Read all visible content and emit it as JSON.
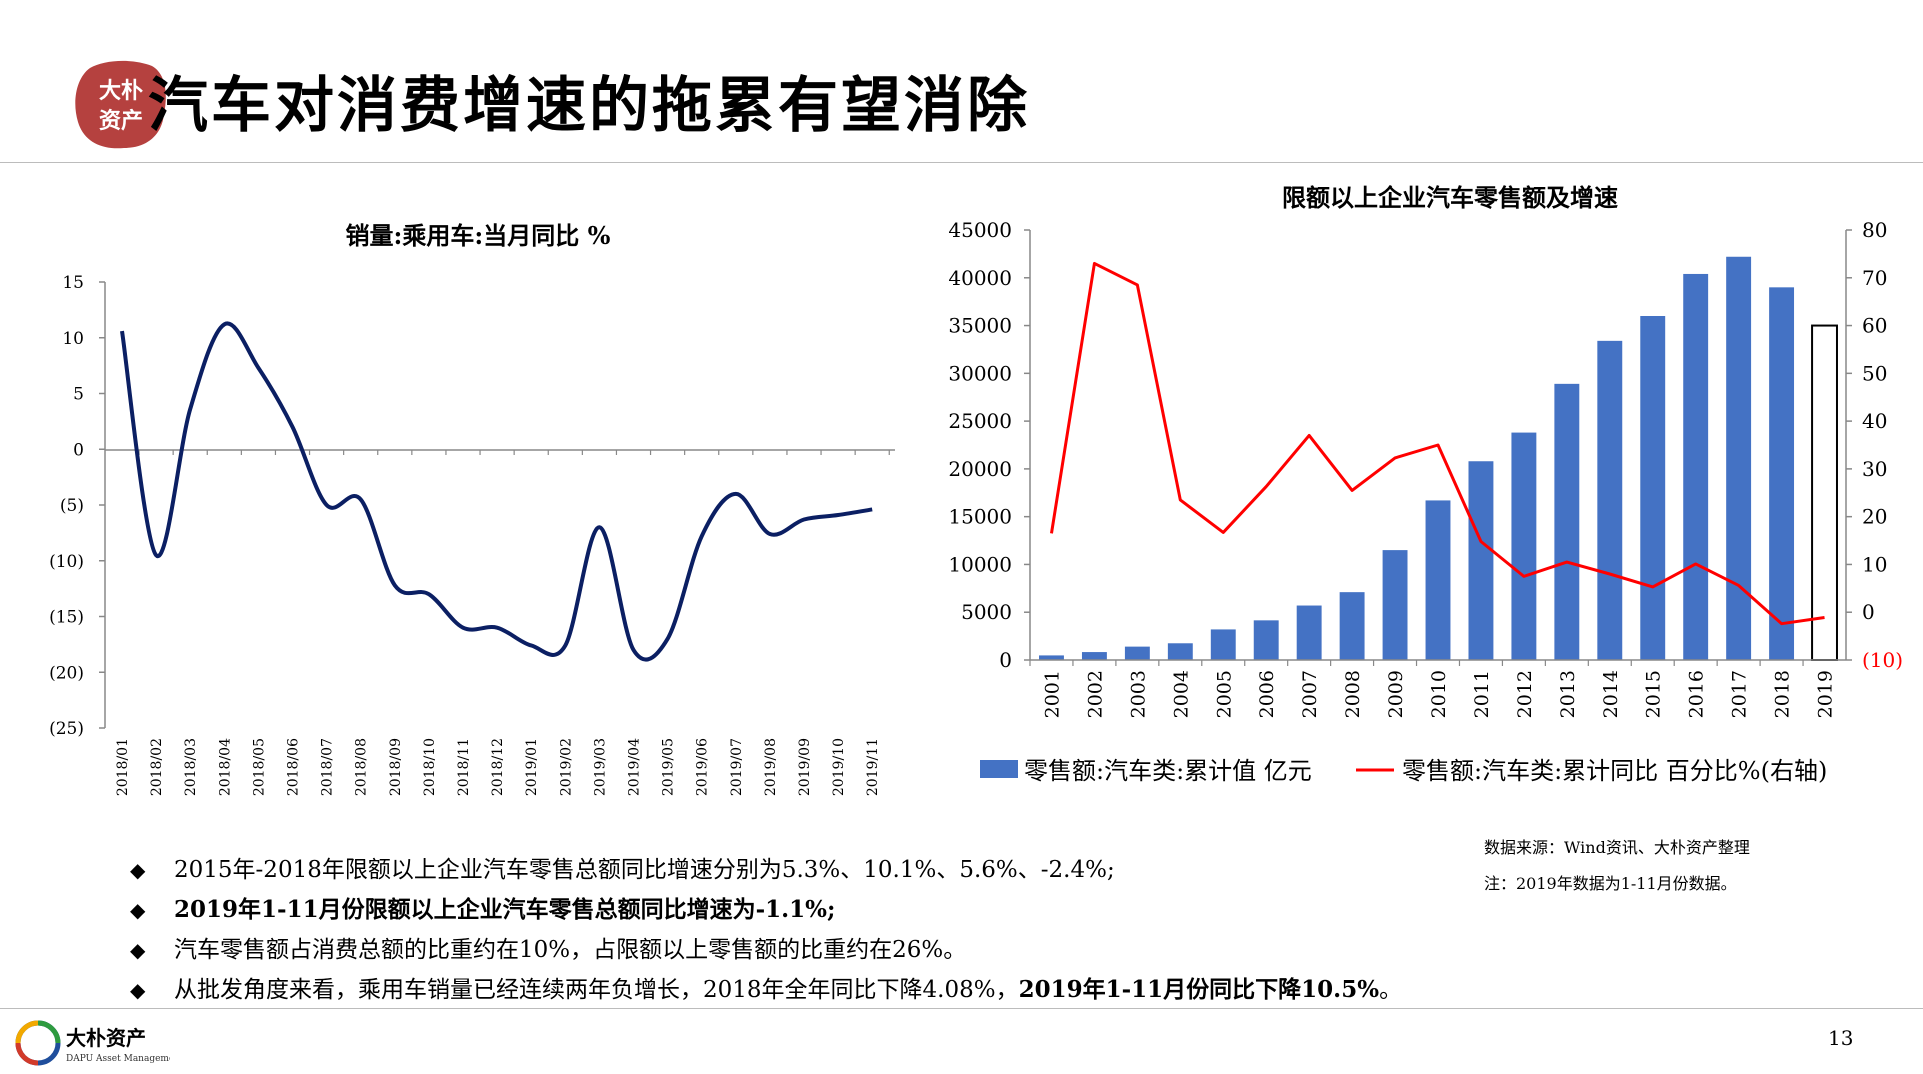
{
  "title": "汽车对消费增速的拖累有望消除",
  "seal_text": [
    "大朴",
    "资产"
  ],
  "left_chart_title": "销量:乘用车:当月同比  %",
  "right_chart_title": "限额以上企业汽车零售额及增速",
  "chart_data": [
    {
      "type": "line",
      "title": "销量:乘用车:当月同比  %",
      "x": [
        "2018/01",
        "2018/02",
        "2018/03",
        "2018/04",
        "2018/05",
        "2018/06",
        "2018/07",
        "2018/08",
        "2018/09",
        "2018/10",
        "2018/11",
        "2018/12",
        "2019/01",
        "2019/02",
        "2019/03",
        "2019/04",
        "2019/05",
        "2019/06",
        "2019/07",
        "2019/08",
        "2019/09",
        "2019/10",
        "2019/11"
      ],
      "y_tick_labels": [
        "15",
        "10",
        "5",
        "0",
        "(5)",
        "(10)",
        "(15)",
        "(20)",
        "(25)"
      ],
      "ylim": [
        -25,
        15
      ],
      "series": [
        {
          "values": [
            10.6,
            -9.5,
            3.6,
            11.2,
            7.3,
            2.0,
            -5.0,
            -4.5,
            -12.2,
            -13.0,
            -16.0,
            -16.0,
            -17.6,
            -17.6,
            -7.0,
            -18.0,
            -17.0,
            -7.8,
            -4.0,
            -7.6,
            -6.3,
            -5.9,
            -5.4
          ]
        }
      ],
      "line_color": "#0b1f63",
      "grid": false
    },
    {
      "type": "bar",
      "title": "限额以上企业汽车零售额及增速",
      "categories": [
        "2001",
        "2002",
        "2003",
        "2004",
        "2005",
        "2006",
        "2007",
        "2008",
        "2009",
        "2010",
        "2011",
        "2012",
        "2013",
        "2014",
        "2015",
        "2016",
        "2017",
        "2018",
        "2019"
      ],
      "left_ylim": [
        0,
        45000
      ],
      "left_ticks": [
        "0",
        "5000",
        "10000",
        "15000",
        "20000",
        "25000",
        "30000",
        "35000",
        "40000",
        "45000"
      ],
      "right_ylim": [
        -10,
        80
      ],
      "right_ticks": [
        "(10)",
        "0",
        "10",
        "20",
        "30",
        "40",
        "50",
        "60",
        "70",
        "80"
      ],
      "series": [
        {
          "name": "零售额:汽车类:累计值 亿元",
          "kind": "bar",
          "axis": "left",
          "color": "#4472c4",
          "values": [
            480,
            830,
            1400,
            1750,
            3200,
            4150,
            5700,
            7100,
            11500,
            16700,
            20800,
            23800,
            28900,
            33400,
            36000,
            40400,
            42200,
            39000,
            35000
          ],
          "last_bar_outline_only": true
        },
        {
          "name": "零售额:汽车类:累计同比 百分比%(右轴)",
          "kind": "line",
          "axis": "right",
          "color": "#ff0000",
          "values": [
            16.5,
            73.0,
            68.5,
            23.5,
            16.7,
            26.3,
            37.0,
            25.5,
            32.3,
            35.0,
            14.8,
            7.5,
            10.5,
            8.0,
            5.3,
            10.1,
            5.6,
            -2.4,
            -1.1
          ]
        }
      ],
      "legend_position": "bottom",
      "grid": false
    }
  ],
  "bullets": [
    {
      "parts": [
        {
          "text": "2015年-2018年限额以上企业汽车零售总额同比增速分别为5.3%、10.1%、5.6%、-2.4%;",
          "bold": false
        }
      ]
    },
    {
      "parts": [
        {
          "text": "2019年1-11月份限额以上企业汽车零售总额同比增速为-1.1%;",
          "bold": true
        }
      ]
    },
    {
      "parts": [
        {
          "text": "汽车零售额占消费总额的比重约在10%，占限额以上零售额的比重约在26%。",
          "bold": false
        }
      ]
    },
    {
      "parts": [
        {
          "text": "从批发角度来看，乘用车销量已经连续两年负增长，2018年全年同比下降4.08%，",
          "bold": false
        },
        {
          "text": "2019年1-11月份同比下降10.5%",
          "bold": true
        },
        {
          "text": "。",
          "bold": false
        }
      ]
    }
  ],
  "bullet_marker": "◆",
  "source_line": "数据来源：Wind资讯、大朴资产整理",
  "note_line": "注：2019年数据为1-11月份数据。",
  "page_number": "13",
  "company": {
    "name": "大朴资产",
    "english": "DAPU Asset Management"
  },
  "colors": {
    "accent_red": "#c0504d",
    "bar_blue": "#4472c4",
    "line_red": "#ff0000",
    "line_navy": "#0b1f63"
  }
}
